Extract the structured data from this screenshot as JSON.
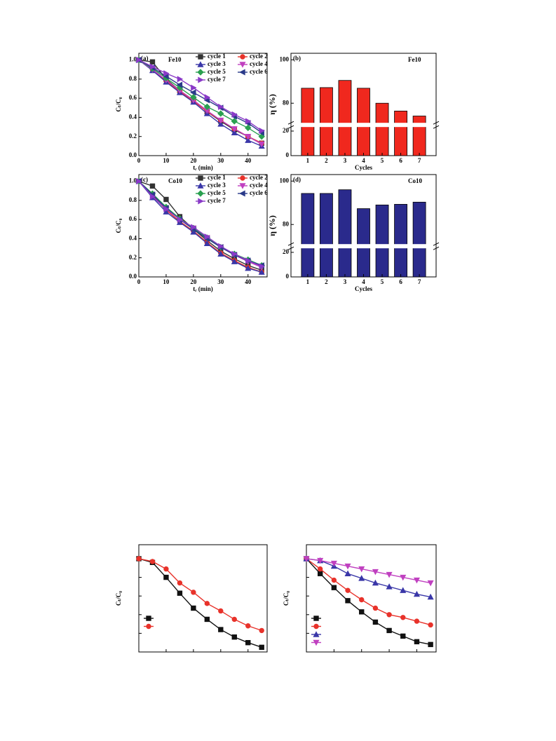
{
  "chart_data": [
    {
      "type": "line",
      "panel_label": "(a)",
      "annotation": "Fe10",
      "xlabel": "tᵣ (min)",
      "ylabel": "Cₜ/C₀",
      "xlim": [
        0,
        47
      ],
      "ylim": [
        0,
        1.07
      ],
      "xticks": [
        0,
        10,
        20,
        30,
        40
      ],
      "yticks": [
        {
          "value": 0,
          "label": "0.0"
        },
        0.2,
        0.4,
        0.6,
        0.8,
        {
          "value": 1,
          "label": "1.0"
        }
      ],
      "tick_labels": true,
      "x": [
        0,
        5,
        10,
        15,
        20,
        25,
        30,
        35,
        40,
        45
      ],
      "series": [
        {
          "name": "cycle 1",
          "color": "#333333",
          "marker": "square",
          "values": [
            1,
            0.98,
            0.8,
            0.68,
            0.58,
            0.46,
            0.36,
            0.27,
            0.2,
            0.13
          ]
        },
        {
          "name": "cycle 2",
          "color": "#e8322a",
          "marker": "circle",
          "values": [
            1,
            0.9,
            0.78,
            0.67,
            0.57,
            0.46,
            0.37,
            0.28,
            0.2,
            0.13
          ]
        },
        {
          "name": "cycle 3",
          "color": "#3a37a8",
          "marker": "up",
          "values": [
            1,
            0.89,
            0.77,
            0.66,
            0.56,
            0.44,
            0.33,
            0.24,
            0.16,
            0.1
          ]
        },
        {
          "name": "cycle 4",
          "color": "#c040c0",
          "marker": "down",
          "values": [
            1,
            0.9,
            0.79,
            0.68,
            0.58,
            0.47,
            0.37,
            0.28,
            0.2,
            0.12
          ]
        },
        {
          "name": "cycle 5",
          "color": "#2aa050",
          "marker": "diamond",
          "values": [
            1,
            0.91,
            0.81,
            0.71,
            0.61,
            0.51,
            0.44,
            0.36,
            0.29,
            0.2
          ]
        },
        {
          "name": "cycle 6",
          "color": "#2a3a8a",
          "marker": "left",
          "values": [
            1,
            0.92,
            0.83,
            0.74,
            0.66,
            0.58,
            0.5,
            0.41,
            0.34,
            0.24
          ]
        },
        {
          "name": "cycle 7",
          "color": "#8a3ac8",
          "marker": "right",
          "values": [
            1,
            0.93,
            0.86,
            0.8,
            0.71,
            0.61,
            0.51,
            0.43,
            0.36,
            0.26
          ]
        }
      ]
    },
    {
      "type": "bar",
      "panel_label": "(b)",
      "annotation": "Fe10",
      "xlabel": "Cycles",
      "ylabel": "η (%)",
      "color": "#f0281e",
      "ylim": [
        0,
        103
      ],
      "ybreak": [
        25,
        70
      ],
      "yticks": [
        0,
        20,
        80,
        100
      ],
      "categories": [
        "1",
        "2",
        "3",
        "4",
        "5",
        "6",
        "7"
      ],
      "values": [
        86.9,
        87.2,
        90.5,
        86.9,
        80,
        76.4,
        74.1
      ]
    },
    {
      "type": "line",
      "panel_label": "(c)",
      "annotation": "Co10",
      "xlabel": "tᵣ (min)",
      "ylabel": "Cₜ/C₀",
      "xlim": [
        0,
        47
      ],
      "ylim": [
        0,
        1.07
      ],
      "xticks": [
        0,
        10,
        20,
        30,
        40
      ],
      "yticks": [
        {
          "value": 0,
          "label": "0.0"
        },
        0.2,
        0.4,
        0.6,
        0.8,
        {
          "value": 1,
          "label": "1.0"
        }
      ],
      "tick_labels": true,
      "x": [
        0,
        5,
        10,
        15,
        20,
        25,
        30,
        35,
        40,
        45
      ],
      "series": [
        {
          "name": "cycle 1",
          "color": "#333333",
          "marker": "square",
          "values": [
            1,
            0.95,
            0.81,
            0.63,
            0.5,
            0.38,
            0.27,
            0.19,
            0.12,
            0.07
          ]
        },
        {
          "name": "cycle 2",
          "color": "#e8322a",
          "marker": "circle",
          "values": [
            1,
            0.85,
            0.7,
            0.58,
            0.48,
            0.36,
            0.25,
            0.17,
            0.1,
            0.05
          ]
        },
        {
          "name": "cycle 3",
          "color": "#3a37a8",
          "marker": "up",
          "values": [
            1,
            0.83,
            0.68,
            0.57,
            0.47,
            0.35,
            0.24,
            0.16,
            0.09,
            0.05
          ]
        },
        {
          "name": "cycle 4",
          "color": "#c040c0",
          "marker": "down",
          "values": [
            1,
            0.86,
            0.72,
            0.6,
            0.51,
            0.41,
            0.31,
            0.23,
            0.16,
            0.1
          ]
        },
        {
          "name": "cycle 5",
          "color": "#2aa050",
          "marker": "diamond",
          "values": [
            1,
            0.87,
            0.73,
            0.61,
            0.51,
            0.41,
            0.31,
            0.24,
            0.18,
            0.12
          ]
        },
        {
          "name": "cycle 6",
          "color": "#2a3a8a",
          "marker": "left",
          "values": [
            1,
            0.86,
            0.72,
            0.6,
            0.5,
            0.4,
            0.31,
            0.23,
            0.17,
            0.12
          ]
        },
        {
          "name": "cycle 7",
          "color": "#8a3ac8",
          "marker": "right",
          "values": [
            1,
            0.84,
            0.71,
            0.6,
            0.52,
            0.42,
            0.32,
            0.24,
            0.17,
            0.11
          ]
        }
      ]
    },
    {
      "type": "bar",
      "panel_label": "(d)",
      "annotation": "Co10",
      "xlabel": "Cycles",
      "ylabel": "η (%)",
      "color": "#2a2a8c",
      "ylim": [
        0,
        103
      ],
      "ybreak": [
        25,
        70
      ],
      "yticks": [
        0,
        20,
        80,
        100
      ],
      "categories": [
        "1",
        "2",
        "3",
        "4",
        "5",
        "6",
        "7"
      ],
      "values": [
        94.3,
        94.3,
        96,
        87.3,
        89,
        89.3,
        90.3
      ]
    },
    {
      "type": "line",
      "ylabel": "Cₜ/C₀",
      "xlim": [
        0,
        47
      ],
      "ylim": [
        0,
        1.15
      ],
      "xticks": [
        0,
        10,
        20,
        30,
        40
      ],
      "yticks": [
        0,
        0.2,
        0.4,
        0.6,
        0.8,
        1
      ],
      "tick_labels": false,
      "x": [
        0,
        5,
        10,
        15,
        20,
        25,
        30,
        35,
        40,
        45
      ],
      "series": [
        {
          "color": "#111111",
          "marker": "square",
          "values": [
            1,
            0.96,
            0.8,
            0.63,
            0.47,
            0.35,
            0.24,
            0.16,
            0.1,
            0.05
          ]
        },
        {
          "color": "#e8322a",
          "marker": "circle",
          "values": [
            1,
            0.97,
            0.89,
            0.74,
            0.64,
            0.52,
            0.44,
            0.35,
            0.28,
            0.23
          ]
        }
      ]
    },
    {
      "type": "line",
      "ylabel": "Cₜ/C₀",
      "xlim": [
        0,
        47
      ],
      "ylim": [
        0,
        1.15
      ],
      "xticks": [
        0,
        10,
        20,
        30,
        40
      ],
      "yticks": [
        0,
        0.2,
        0.4,
        0.6,
        0.8,
        1
      ],
      "tick_labels": false,
      "x": [
        0,
        5,
        10,
        15,
        20,
        25,
        30,
        35,
        40,
        45
      ],
      "series": [
        {
          "color": "#111111",
          "marker": "square",
          "values": [
            1,
            0.84,
            0.69,
            0.55,
            0.43,
            0.32,
            0.23,
            0.17,
            0.11,
            0.08
          ]
        },
        {
          "color": "#e8322a",
          "marker": "circle",
          "values": [
            1,
            0.89,
            0.77,
            0.66,
            0.56,
            0.47,
            0.4,
            0.37,
            0.33,
            0.29
          ]
        },
        {
          "color": "#3a37a8",
          "marker": "up",
          "values": [
            1,
            0.98,
            0.92,
            0.84,
            0.79,
            0.74,
            0.7,
            0.66,
            0.62,
            0.59
          ]
        },
        {
          "color": "#c040c0",
          "marker": "down",
          "values": [
            1,
            0.98,
            0.95,
            0.92,
            0.89,
            0.86,
            0.83,
            0.8,
            0.77,
            0.74
          ]
        }
      ]
    }
  ]
}
